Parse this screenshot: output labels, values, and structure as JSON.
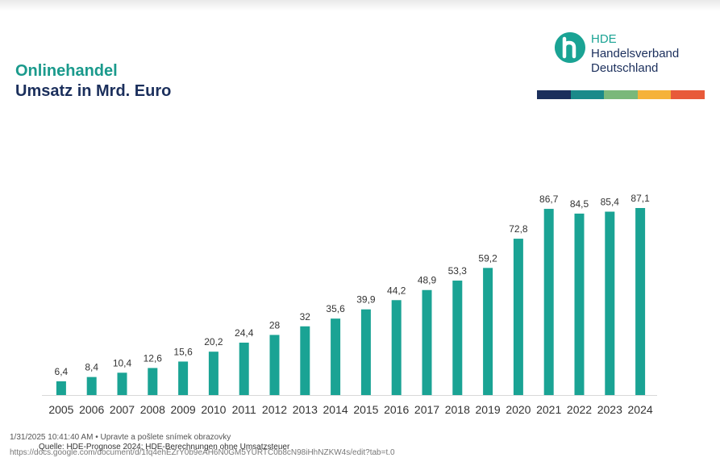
{
  "title": {
    "line1": "Onlinehandel",
    "line2": "Umsatz in Mrd. Euro",
    "color1": "#1a9a8c",
    "color2": "#1b2f5c"
  },
  "logo": {
    "line1": "HDE",
    "line2": "Handelsverband",
    "line3": "Deutschland",
    "mark_color": "#1aa394",
    "text_color": "#1b2f5c",
    "stripe_colors": [
      "#1b2f5c",
      "#1a8a8a",
      "#7ab87a",
      "#f5b23a",
      "#e85a3a"
    ]
  },
  "chart_data": {
    "type": "bar",
    "title": "Onlinehandel – Umsatz in Mrd. Euro",
    "categories": [
      "2005",
      "2006",
      "2007",
      "2008",
      "2009",
      "2010",
      "2011",
      "2012",
      "2013",
      "2014",
      "2015",
      "2016",
      "2017",
      "2018",
      "2019",
      "2020",
      "2021",
      "2022",
      "2023",
      "2024"
    ],
    "values": [
      6.4,
      8.4,
      10.4,
      12.6,
      15.6,
      20.2,
      24.4,
      28,
      32,
      35.6,
      39.9,
      44.2,
      48.9,
      53.3,
      59.2,
      72.8,
      86.7,
      84.5,
      85.4,
      87.1
    ],
    "value_labels": [
      "6,4",
      "8,4",
      "10,4",
      "12,6",
      "15,6",
      "20,2",
      "24,4",
      "28",
      "32",
      "35,6",
      "39,9",
      "44,2",
      "48,9",
      "53,3",
      "59,2",
      "72,8",
      "86,7",
      "84,5",
      "85,4",
      "87,1"
    ],
    "xlabel": "",
    "ylabel": "",
    "ylim": [
      0,
      87.1
    ],
    "bar_color": "#1aa394",
    "grid": false
  },
  "footer": {
    "timestamp_note": "1/31/2025 10:41:40 AM • Upravte a pošlete snímek obrazovky",
    "source": "Quelle: HDE-Prognose 2024; HDE-Berechnungen ohne Umsatzsteuer",
    "url": "https://docs.google.com/document/d/1fq4ehEZrY0b9eAH6N0GM5YURTC0b8cN98iHhNZKW4s/edit?tab=t.0"
  }
}
